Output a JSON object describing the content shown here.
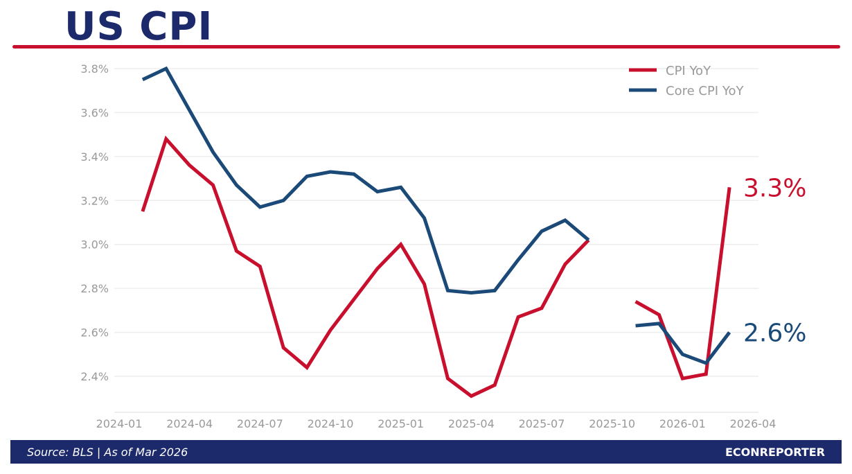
{
  "header": {
    "title": "US CPI"
  },
  "footer": {
    "source": "Source: BLS  |  As of Mar 2026",
    "brand": "ECONREPORTER"
  },
  "colors": {
    "cpi": "#c8102e",
    "core": "#1b4a78",
    "title": "#1c2a6b"
  },
  "chart_data": {
    "type": "line",
    "title": "US CPI",
    "xlabel": "",
    "ylabel": "",
    "ylim": [
      2.4,
      3.8
    ],
    "xlim": [
      "2024-01",
      "2026-04"
    ],
    "y_ticks": [
      "2.4%",
      "2.6%",
      "2.8%",
      "3.0%",
      "3.2%",
      "3.4%",
      "3.6%",
      "3.8%"
    ],
    "x_ticks": [
      "2024-01",
      "2024-04",
      "2024-07",
      "2024-10",
      "2025-01",
      "2025-04",
      "2025-07",
      "2025-10",
      "2026-01",
      "2026-04"
    ],
    "grid": "horizontal",
    "legend": "top-right",
    "x": [
      "2024-02",
      "2024-03",
      "2024-04",
      "2024-05",
      "2024-06",
      "2024-07",
      "2024-08",
      "2024-09",
      "2024-10",
      "2024-11",
      "2024-12",
      "2025-01",
      "2025-02",
      "2025-03",
      "2025-04",
      "2025-05",
      "2025-06",
      "2025-07",
      "2025-08",
      "2025-09",
      "2025-10",
      "2025-11",
      "2025-12",
      "2026-01",
      "2026-02",
      "2026-03"
    ],
    "series": [
      {
        "name": "CPI YoY",
        "color": "#c8102e",
        "end_label": "3.3%",
        "values": [
          3.15,
          3.48,
          3.36,
          3.27,
          2.97,
          2.9,
          2.53,
          2.44,
          2.61,
          2.75,
          2.89,
          3.0,
          2.82,
          2.39,
          2.31,
          2.36,
          2.67,
          2.71,
          2.91,
          3.02,
          null,
          2.74,
          2.68,
          2.39,
          2.41,
          3.26
        ]
      },
      {
        "name": "Core CPI YoY",
        "color": "#1b4a78",
        "end_label": "2.6%",
        "values": [
          3.75,
          3.8,
          3.61,
          3.42,
          3.27,
          3.17,
          3.2,
          3.31,
          3.33,
          3.32,
          3.24,
          3.26,
          3.12,
          2.79,
          2.78,
          2.79,
          2.93,
          3.06,
          3.11,
          3.02,
          null,
          2.63,
          2.64,
          2.5,
          2.46,
          2.6
        ]
      }
    ]
  }
}
